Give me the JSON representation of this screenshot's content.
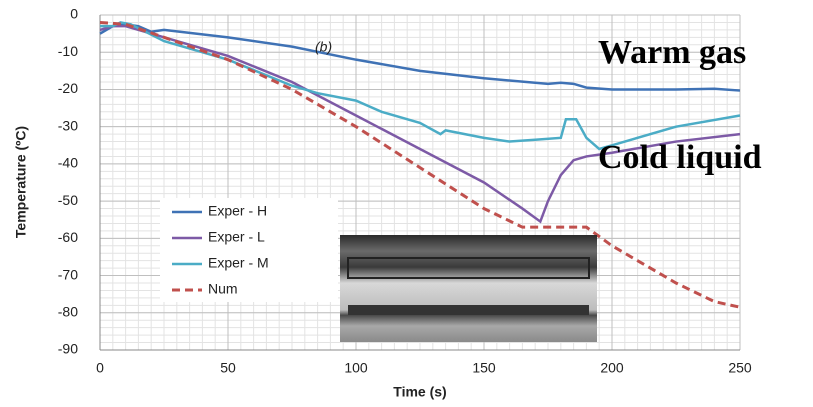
{
  "chart_data": {
    "type": "line",
    "xlabel": "Time (s)",
    "ylabel": "Temperature (ºC)",
    "xlim": [
      0,
      250
    ],
    "xticks": [
      0,
      50,
      100,
      150,
      200,
      250
    ],
    "ylim": [
      -90,
      0
    ],
    "yticks": [
      0,
      -10,
      -20,
      -30,
      -40,
      -50,
      -60,
      -70,
      -80,
      -90
    ],
    "grid": true,
    "legend": "lower left",
    "annotations": [
      "(b)",
      "Warm gas",
      "Cold liquid"
    ],
    "series": [
      {
        "name": "Exper - H",
        "color": "#3f72b5",
        "dash": false,
        "x": [
          0,
          5,
          10,
          15,
          20,
          25,
          50,
          75,
          100,
          125,
          150,
          175,
          180,
          185,
          190,
          200,
          225,
          240,
          250
        ],
        "values": [
          -5,
          -3,
          -2.5,
          -3,
          -4.5,
          -4,
          -6,
          -8.5,
          -12,
          -15,
          -17,
          -18.5,
          -18.2,
          -18.5,
          -19.5,
          -20,
          -20,
          -19.8,
          -20.3
        ]
      },
      {
        "name": "Exper - L",
        "color": "#7d5aa6",
        "dash": false,
        "x": [
          0,
          5,
          10,
          25,
          50,
          75,
          100,
          125,
          150,
          165,
          172,
          175,
          180,
          185,
          190,
          200,
          225,
          250
        ],
        "values": [
          -4,
          -3,
          -3,
          -6,
          -11,
          -18,
          -27,
          -36,
          -45,
          -52,
          -55.5,
          -50,
          -43,
          -39,
          -38,
          -37,
          -34,
          -32
        ]
      },
      {
        "name": "Exper - M",
        "color": "#4bacc6",
        "dash": false,
        "x": [
          0,
          5,
          8,
          12,
          25,
          50,
          75,
          85,
          100,
          110,
          125,
          133,
          135,
          150,
          160,
          170,
          180,
          182,
          186,
          190,
          195,
          200,
          225,
          250
        ],
        "values": [
          -3,
          -3,
          -2,
          -2.5,
          -7,
          -12,
          -19,
          -21,
          -23,
          -26,
          -29,
          -32,
          -31,
          -33,
          -34,
          -33.5,
          -33,
          -28,
          -28,
          -33,
          -36,
          -35,
          -30,
          -27
        ]
      },
      {
        "name": "Num",
        "color": "#c0504d",
        "dash": true,
        "x": [
          0,
          10,
          25,
          50,
          75,
          100,
          125,
          150,
          165,
          190,
          200,
          225,
          240,
          250
        ],
        "values": [
          -2,
          -2.5,
          -6,
          -12,
          -20,
          -30,
          -41,
          -52,
          -57,
          -57,
          -62,
          -72,
          -77,
          -78.5
        ]
      }
    ]
  }
}
